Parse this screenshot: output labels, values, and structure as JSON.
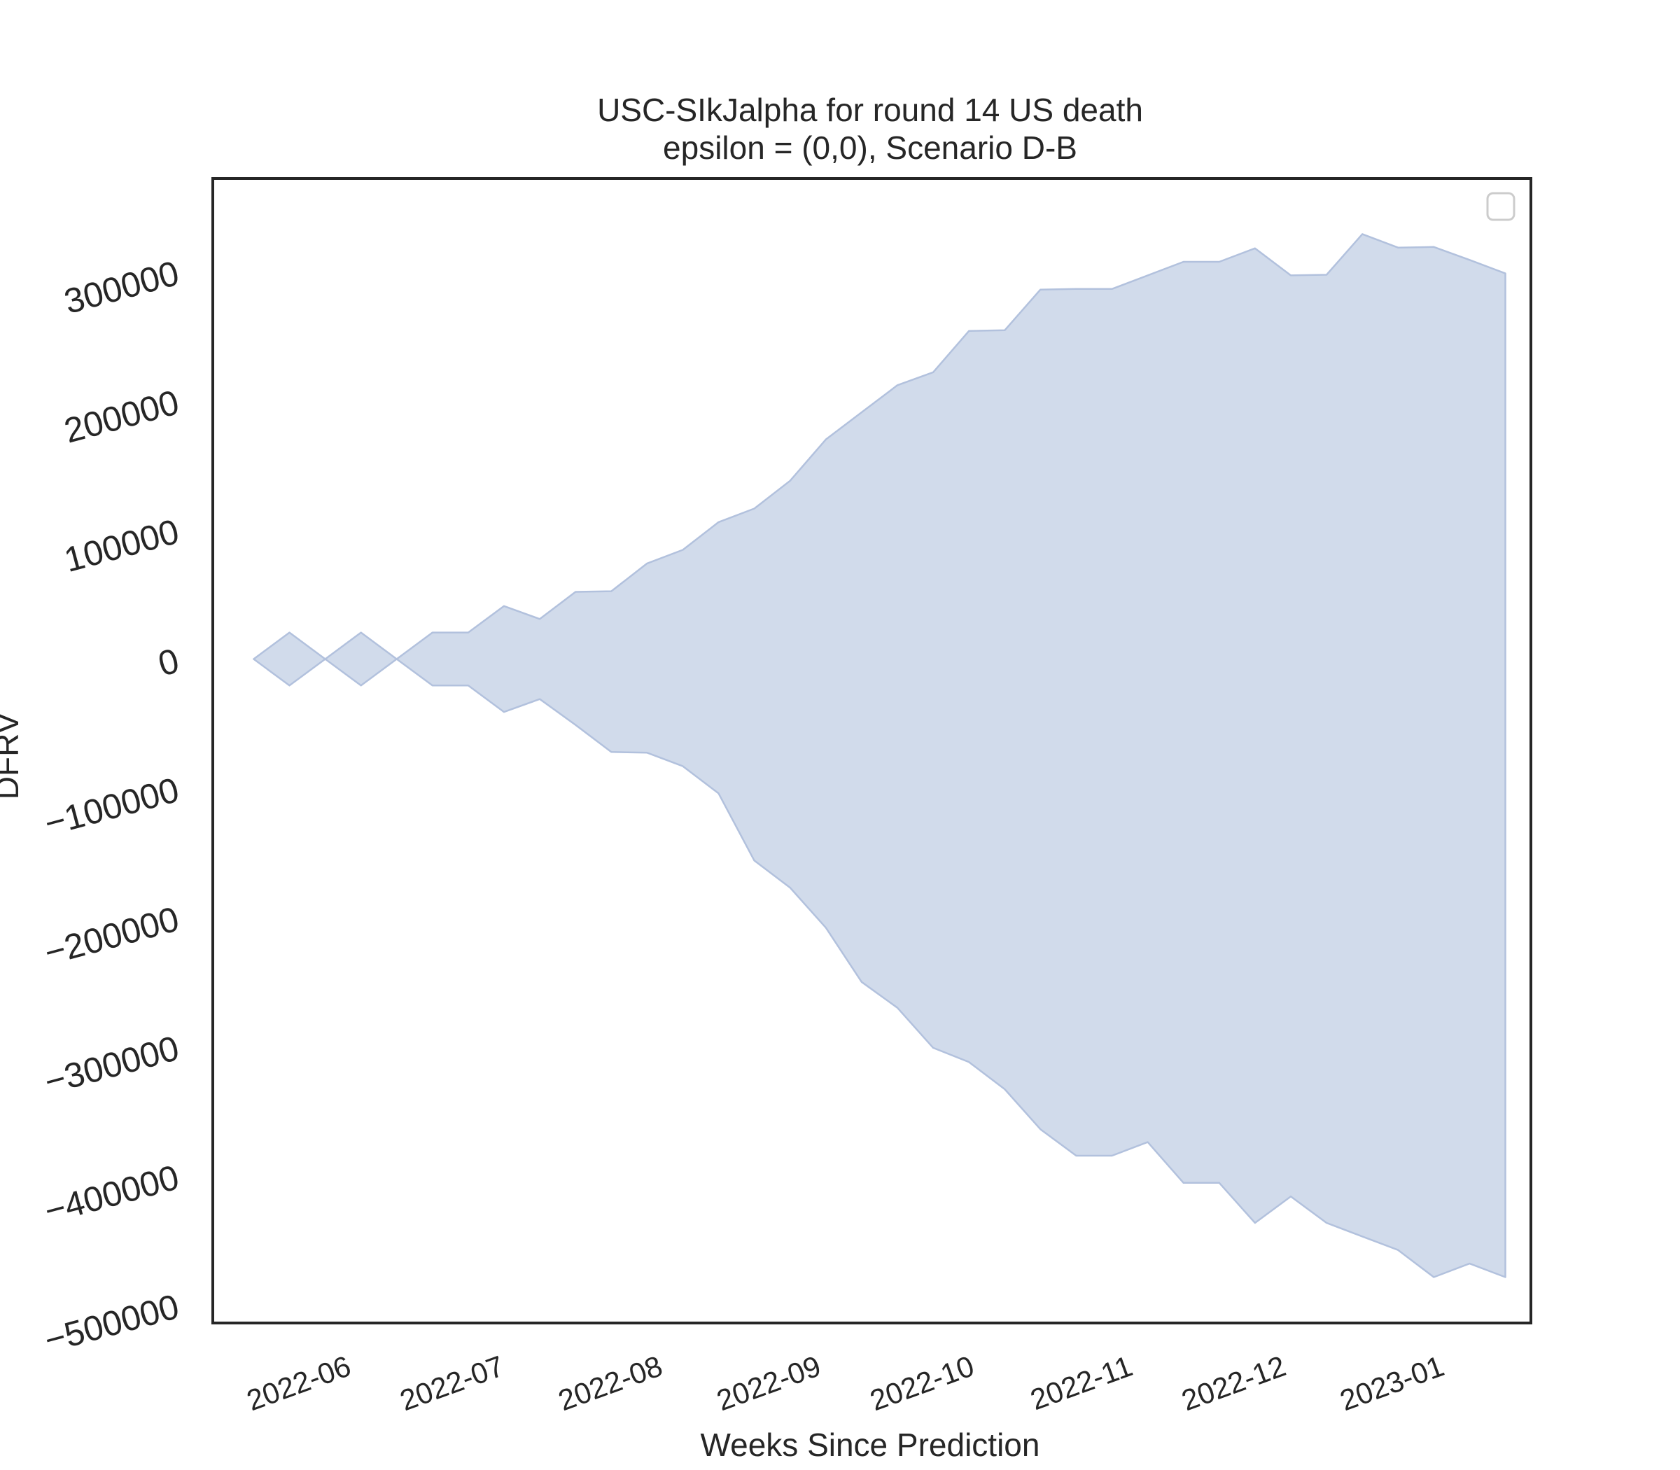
{
  "chart_data": {
    "type": "area",
    "title": "USC-SIkJalpha for round 14 US death",
    "subtitle": "epsilon = (0,0), Scenario D-B",
    "xlabel": "Weeks Since Prediction",
    "ylabel": "DFRV",
    "x_ticks": [
      "2022-06",
      "2022-07",
      "2022-08",
      "2022-09",
      "2022-10",
      "2022-11",
      "2022-12",
      "2023-01"
    ],
    "y_ticks": [
      300000,
      200000,
      100000,
      0,
      -100000,
      -200000,
      -300000,
      -400000,
      -500000
    ],
    "y_tick_labels": [
      "300000",
      "200000",
      "100000",
      "0",
      "−100000",
      "−200000",
      "−300000",
      "−400000",
      "−500000"
    ],
    "ylim": [
      -514000,
      372000
    ],
    "xlim": [
      "2022-05-06",
      "2023-01-19"
    ],
    "grid": false,
    "legend": {
      "placement": "top-right",
      "entries": []
    },
    "colors": {
      "fill": "#d1dbeb",
      "edge": "#b2c1dd",
      "frame": "#262626"
    },
    "series": [
      {
        "x": [
          "2022-05-14",
          "2022-05-21",
          "2022-05-28",
          "2022-06-04",
          "2022-06-11",
          "2022-06-18",
          "2022-06-25",
          "2022-07-02",
          "2022-07-09",
          "2022-07-16",
          "2022-07-23",
          "2022-07-30",
          "2022-08-06",
          "2022-08-13",
          "2022-08-20",
          "2022-08-27",
          "2022-09-03",
          "2022-09-10",
          "2022-09-17",
          "2022-09-24",
          "2022-10-01",
          "2022-10-08",
          "2022-10-15",
          "2022-10-22",
          "2022-10-29",
          "2022-11-05",
          "2022-11-12",
          "2022-11-19",
          "2022-11-26",
          "2022-12-03",
          "2022-12-10",
          "2022-12-17",
          "2022-12-24",
          "2022-12-31",
          "2023-01-07",
          "2023-01-14"
        ],
        "upper": [
          0,
          20500,
          0,
          20500,
          0,
          20500,
          20500,
          41000,
          31000,
          52000,
          52500,
          74000,
          84500,
          106000,
          116500,
          138000,
          170000,
          191000,
          212000,
          222000,
          254000,
          254500,
          286000,
          286500,
          286500,
          297000,
          307500,
          307500,
          318000,
          297000,
          297500,
          329000,
          318500,
          319000,
          309000,
          298500
        ],
        "lower": [
          0,
          -20500,
          0,
          -20500,
          0,
          -20500,
          -20500,
          -41000,
          -31000,
          -51000,
          -72000,
          -72500,
          -83000,
          -104000,
          -156000,
          -177000,
          -208000,
          -250000,
          -270000,
          -301000,
          -312000,
          -333000,
          -364000,
          -384500,
          -384500,
          -374000,
          -405500,
          -405500,
          -436500,
          -416000,
          -436500,
          -447000,
          -457500,
          -478500,
          -468000,
          -478500
        ]
      }
    ]
  }
}
